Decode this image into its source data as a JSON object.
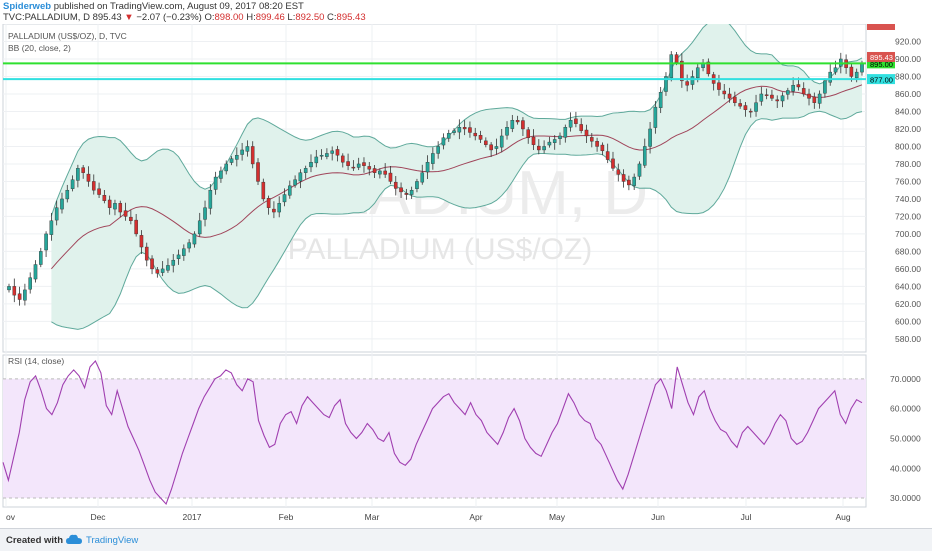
{
  "header": {
    "author": "Spiderweb",
    "published": "published on TradingView.com, August 09, 2017 08:20 EST",
    "symbol": "TVC:PALLADIUM, D",
    "last": "895.43",
    "change": "−2.07 (−0.23%)",
    "o_label": "O:",
    "o_val": "898.00",
    "h_label": "H:",
    "h_val": "899.46",
    "l_label": "L:",
    "l_val": "892.50",
    "c_label": "C:",
    "c_val": "895.43"
  },
  "overlays": {
    "series_name": "PALLADIUM (US$/OZ), D, TVC",
    "bb_label": "BB (20, close, 2)",
    "rsi_label": "RSI (14, close)"
  },
  "watermark": {
    "line1": "PALLADIUM, D",
    "line2": "PALLADIUM (US$/OZ)"
  },
  "footer": {
    "created_with": "Created with",
    "brand": "TradingView"
  },
  "colors": {
    "candle_up": "#26a69a",
    "candle_down": "#d32f2f",
    "bb_fill": "#e0f2ec",
    "bb_band": "#5fa99b",
    "bb_basis": "#a0455a",
    "green_line": "#2fe02f",
    "cyan_line": "#31e0e0",
    "rsi_line": "#a03fb0",
    "rsi_fill": "#f3e6fb",
    "price_tag": "#d9534f",
    "green_tag": "#2fe02f",
    "cyan_tag": "#3ad9e0"
  },
  "chart_data": [
    {
      "type": "candlestick",
      "name": "PALLADIUM (US$/OZ), D, TVC",
      "x_ticks": [
        "ov",
        "Dec",
        "2017",
        "Feb",
        "Mar",
        "Apr",
        "May",
        "Jun",
        "Jul",
        "Aug"
      ],
      "y_ticks": [
        "580.00",
        "600.00",
        "620.00",
        "640.00",
        "660.00",
        "680.00",
        "700.00",
        "720.00",
        "740.00",
        "760.00",
        "780.00",
        "800.00",
        "820.00",
        "840.00",
        "860.00",
        "880.00",
        "900.00",
        "920.00"
      ],
      "ylim": [
        565,
        940
      ],
      "closes_approx": [
        640,
        630,
        625,
        636,
        650,
        665,
        680,
        700,
        715,
        730,
        740,
        750,
        762,
        775,
        770,
        760,
        750,
        745,
        738,
        730,
        735,
        725,
        720,
        715,
        700,
        685,
        670,
        660,
        655,
        660,
        664,
        670,
        676,
        683,
        690,
        700,
        715,
        730,
        750,
        765,
        772,
        780,
        786,
        790,
        796,
        800,
        780,
        760,
        740,
        730,
        725,
        735,
        745,
        755,
        762,
        770,
        775,
        782,
        788,
        790,
        792,
        795,
        790,
        782,
        778,
        776,
        780,
        778,
        774,
        770,
        772,
        768,
        760,
        752,
        748,
        745,
        750,
        760,
        770,
        782,
        792,
        800,
        810,
        815,
        818,
        822,
        820,
        816,
        812,
        808,
        802,
        796,
        800,
        812,
        822,
        830,
        828,
        820,
        810,
        802,
        796,
        800,
        805,
        808,
        812,
        822,
        830,
        826,
        818,
        812,
        806,
        800,
        795,
        785,
        775,
        768,
        760,
        756,
        765,
        780,
        800,
        820,
        845,
        862,
        880,
        905,
        896,
        875,
        870,
        880,
        890,
        895,
        883,
        872,
        865,
        860,
        855,
        850,
        846,
        842,
        840,
        850,
        860,
        858,
        855,
        852,
        858,
        864,
        870,
        868,
        860,
        855,
        850,
        860,
        875,
        885,
        890,
        900,
        890,
        880,
        885,
        895
      ],
      "levels": [
        {
          "price": 895.0,
          "tag": "895.00",
          "color": "#2fe02f"
        },
        {
          "price": 877.0,
          "tag": "877.00",
          "color": "#31e0e0"
        }
      ],
      "last_price": {
        "value": 895.43,
        "tag": "895.43"
      },
      "top_tag": "935.00",
      "indicator": "BB (20, close, 2)"
    },
    {
      "type": "line",
      "name": "RSI (14, close)",
      "y_ticks": [
        "30.0000",
        "40.0000",
        "50.0000",
        "60.0000",
        "70.0000"
      ],
      "ylim": [
        27,
        78
      ],
      "bands": [
        30,
        70
      ],
      "values_approx": [
        42,
        36,
        44,
        52,
        63,
        69,
        71,
        66,
        60,
        58,
        62,
        68,
        71,
        73,
        71,
        67,
        74,
        76,
        72,
        61,
        58,
        66,
        60,
        54,
        50,
        46,
        41,
        36,
        32,
        30,
        28,
        33,
        39,
        45,
        50,
        55,
        60,
        64,
        67,
        70,
        71,
        73,
        72,
        68,
        66,
        70,
        69,
        56,
        51,
        47,
        48,
        55,
        58,
        59,
        55,
        61,
        64,
        62,
        60,
        58,
        57,
        61,
        63,
        55,
        52,
        50,
        52,
        55,
        53,
        50,
        49,
        52,
        45,
        42,
        41,
        43,
        48,
        52,
        56,
        60,
        62,
        64,
        65,
        62,
        60,
        58,
        62,
        58,
        56,
        52,
        50,
        48,
        52,
        57,
        60,
        56,
        50,
        47,
        45,
        44,
        48,
        52,
        55,
        60,
        65,
        62,
        58,
        56,
        55,
        50,
        48,
        44,
        40,
        36,
        33,
        38,
        44,
        50,
        56,
        62,
        68,
        70,
        66,
        60,
        74,
        68,
        62,
        58,
        64,
        66,
        60,
        56,
        53,
        52,
        49,
        47,
        52,
        54,
        52,
        50,
        48,
        51,
        55,
        58,
        56,
        50,
        48,
        49,
        52,
        56,
        60,
        62,
        64,
        66,
        58,
        55,
        60,
        63,
        62
      ]
    }
  ]
}
